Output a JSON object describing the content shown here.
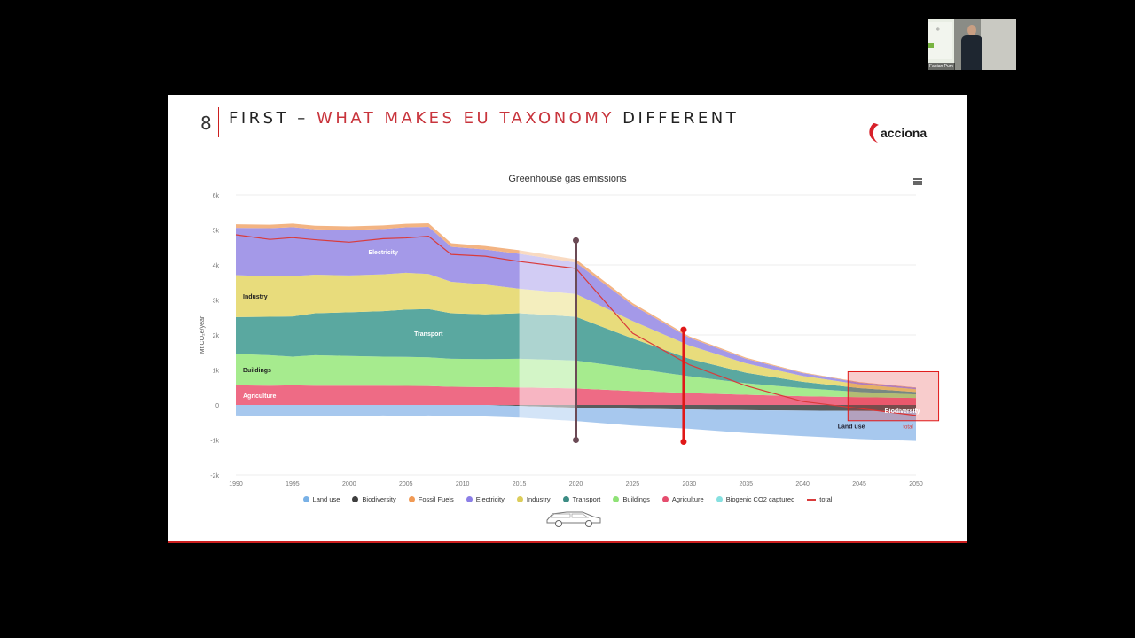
{
  "slide": {
    "number": "8",
    "title_parts": [
      {
        "text": "FIRST – ",
        "highlight": false
      },
      {
        "text": "WHAT MAKES EU TAXONOMY",
        "highlight": true
      },
      {
        "text": " DIFFERENT",
        "highlight": false
      }
    ],
    "brand": "acciona"
  },
  "video_overlay": {
    "speaker_name": "Fabian Pum"
  },
  "colors": {
    "accent_red": "#cc1f1f",
    "title_highlight": "#c8343c"
  },
  "chart_data": {
    "type": "area",
    "title": "Greenhouse gas emissions",
    "ylabel": "Mt CO₂e/year",
    "ylim": [
      -2000,
      6000
    ],
    "yticks": [
      -2000,
      -1000,
      0,
      1000,
      2000,
      3000,
      4000,
      5000,
      6000
    ],
    "ytick_labels": [
      "-2k",
      "-1k",
      "0",
      "1k",
      "2k",
      "3k",
      "4k",
      "5k",
      "6k"
    ],
    "xlim": [
      1990,
      2050
    ],
    "xticks": [
      1990,
      1995,
      2000,
      2005,
      2010,
      2015,
      2020,
      2025,
      2030,
      2035,
      2040,
      2045,
      2050
    ],
    "x": [
      1990,
      1993,
      1995,
      1997,
      2000,
      2003,
      2005,
      2007,
      2009,
      2012,
      2015,
      2020,
      2025,
      2030,
      2035,
      2040,
      2045,
      2050
    ],
    "stacked_positive": [
      {
        "name": "Agriculture",
        "color": "#ee6b85",
        "values": [
          560,
          550,
          560,
          550,
          550,
          550,
          545,
          540,
          520,
          510,
          500,
          470,
          400,
          340,
          290,
          250,
          220,
          200
        ],
        "label": "Agriculture"
      },
      {
        "name": "Buildings",
        "color": "#a6eb8e",
        "values": [
          900,
          870,
          820,
          870,
          850,
          830,
          830,
          820,
          800,
          800,
          820,
          800,
          650,
          480,
          330,
          230,
          150,
          100
        ],
        "label": "Buildings"
      },
      {
        "name": "Transport",
        "color": "#5aa8a0",
        "values": [
          1050,
          1100,
          1150,
          1200,
          1250,
          1300,
          1350,
          1380,
          1300,
          1280,
          1300,
          1250,
          850,
          500,
          300,
          180,
          110,
          70
        ],
        "label": "Transport"
      },
      {
        "name": "Industry",
        "color": "#e8dc7c",
        "values": [
          1200,
          1150,
          1150,
          1100,
          1050,
          1050,
          1050,
          1000,
          900,
          850,
          700,
          650,
          500,
          380,
          270,
          170,
          110,
          80
        ],
        "label": "Industry"
      },
      {
        "name": "Electricity",
        "color": "#a499e8",
        "values": [
          1350,
          1380,
          1400,
          1300,
          1300,
          1300,
          1300,
          1350,
          1000,
          1000,
          1000,
          900,
          450,
          220,
          130,
          80,
          50,
          40
        ],
        "label": "Electricity"
      },
      {
        "name": "Fossil Fuels",
        "color": "#f3b483",
        "values": [
          100,
          100,
          100,
          100,
          100,
          100,
          100,
          100,
          100,
          100,
          100,
          90,
          60,
          40,
          30,
          20,
          15,
          10
        ],
        "label": ""
      }
    ],
    "stacked_negative": [
      {
        "name": "Biodiversity",
        "color": "#5b5b5b",
        "values": [
          0,
          0,
          0,
          0,
          0,
          0,
          0,
          0,
          0,
          0,
          -30,
          -80,
          -110,
          -130,
          -150,
          -160,
          -170,
          -180
        ],
        "label": "Biodiversity"
      },
      {
        "name": "Land use",
        "color": "#a7c8ee",
        "values": [
          -300,
          -320,
          -320,
          -330,
          -330,
          -300,
          -320,
          -300,
          -320,
          -330,
          -330,
          -380,
          -480,
          -550,
          -650,
          -730,
          -800,
          -850
        ],
        "label": "Land use"
      }
    ],
    "total": {
      "name": "total",
      "color": "#d93b3b",
      "values": [
        4860,
        4730,
        4780,
        4720,
        4650,
        4750,
        4770,
        4820,
        4300,
        4250,
        4100,
        3900,
        2050,
        1150,
        550,
        100,
        -100,
        -300
      ],
      "label": "total"
    },
    "markers": [
      {
        "x": 2020,
        "y_top": 4700,
        "y_bottom": -1000,
        "color": "#6b4a55"
      },
      {
        "x": 2029.5,
        "y_top": 2150,
        "y_bottom": -1050,
        "color": "#e01818"
      }
    ],
    "highlight_band": {
      "x_start": 2015,
      "x_end": 2020
    },
    "highlight_box": {
      "x_start": 2044,
      "x_end": 2052,
      "y_top": 950,
      "y_bottom": -450,
      "color": "#e01818"
    },
    "legend": [
      {
        "label": "Land use",
        "color": "#79b1e6",
        "kind": "dot"
      },
      {
        "label": "Biodiversity",
        "color": "#3e3e3e",
        "kind": "dot"
      },
      {
        "label": "Fossil Fuels",
        "color": "#f19a55",
        "kind": "dot"
      },
      {
        "label": "Electricity",
        "color": "#8b7ee6",
        "kind": "dot"
      },
      {
        "label": "Industry",
        "color": "#dccd5a",
        "kind": "dot"
      },
      {
        "label": "Transport",
        "color": "#3c8c84",
        "kind": "dot"
      },
      {
        "label": "Buildings",
        "color": "#8fe276",
        "kind": "dot"
      },
      {
        "label": "Agriculture",
        "color": "#e54d6e",
        "kind": "dot"
      },
      {
        "label": "Biogenic CO2 captured",
        "color": "#86e0e0",
        "kind": "dot"
      },
      {
        "label": "total",
        "color": "#d93b3b",
        "kind": "line"
      }
    ],
    "grid": true
  }
}
